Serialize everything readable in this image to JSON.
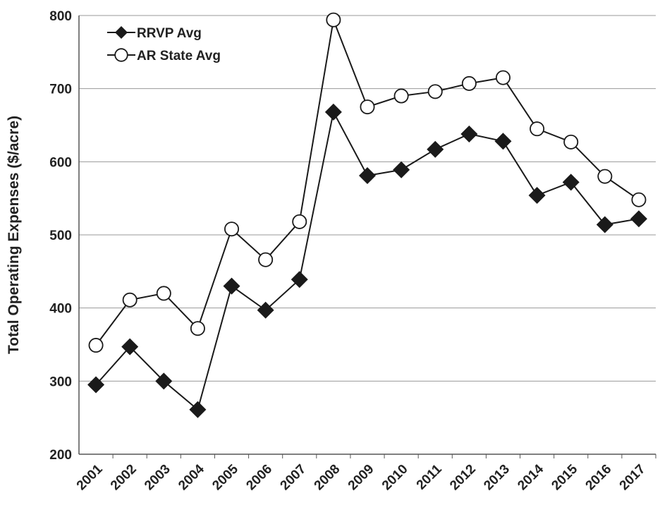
{
  "chart_data": {
    "type": "line",
    "y_label": "Total Operating Expenses ($/acre)",
    "categories": [
      "2001",
      "2002",
      "2003",
      "2004",
      "2005",
      "2006",
      "2007",
      "2008",
      "2009",
      "2010",
      "2011",
      "2012",
      "2013",
      "2014",
      "2015",
      "2016",
      "2017"
    ],
    "series": [
      {
        "name": "RRVP Avg",
        "color": "#1a1a1a",
        "marker": "diamond",
        "values": [
          295,
          347,
          300,
          261,
          430,
          397,
          439,
          668,
          581,
          589,
          617,
          638,
          628,
          554,
          572,
          514,
          522
        ]
      },
      {
        "name": "AR State Avg",
        "color": "#1a1a1a",
        "marker": "circle",
        "values": [
          349,
          411,
          420,
          372,
          508,
          466,
          518,
          794,
          675,
          690,
          696,
          707,
          715,
          645,
          627,
          580,
          548
        ]
      }
    ],
    "ylim": [
      200,
      800
    ],
    "yticks": [
      200,
      300,
      400,
      500,
      600,
      700,
      800
    ],
    "grid": true,
    "legend": "upper left"
  }
}
